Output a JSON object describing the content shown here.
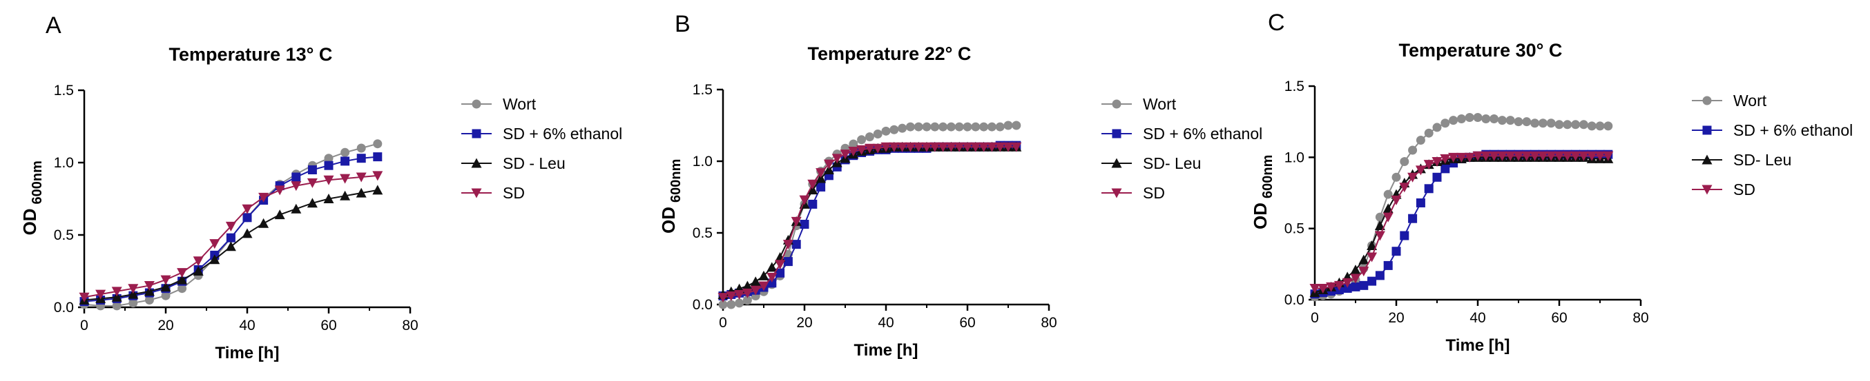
{
  "colors": {
    "wort": "#8c8c8c",
    "sd_ethanol": "#1a1aa6",
    "sd_leu": "#111111",
    "sd": "#9b1d4e",
    "axis": "#000000"
  },
  "chart_data": [
    {
      "type": "line",
      "panel_label": "A",
      "title": "Temperature 13° C",
      "xlabel": "Time [h]",
      "ylabel": "OD",
      "ylabel_sub": "600nm",
      "xlim": [
        0,
        80
      ],
      "ylim": [
        0,
        1.5
      ],
      "xticks": [
        0,
        20,
        40,
        60,
        80
      ],
      "yticks": [
        0.0,
        0.5,
        1.0,
        1.5
      ],
      "ytick_labels": [
        "0.0",
        "0.5",
        "1.0",
        "1.5"
      ],
      "grid": false,
      "legend_position": "right",
      "series": [
        {
          "key": "wort",
          "name": "Wort",
          "marker": "circle",
          "x": [
            0,
            4,
            8,
            12,
            16,
            20,
            24,
            28,
            32,
            36,
            40,
            44,
            48,
            52,
            56,
            60,
            64,
            68,
            72
          ],
          "y": [
            0.02,
            0.01,
            0.01,
            0.03,
            0.05,
            0.08,
            0.13,
            0.22,
            0.34,
            0.48,
            0.62,
            0.75,
            0.85,
            0.92,
            0.98,
            1.03,
            1.07,
            1.1,
            1.13
          ]
        },
        {
          "key": "sd_ethanol",
          "name": "SD + 6% ethanol",
          "marker": "square",
          "x": [
            0,
            4,
            8,
            12,
            16,
            20,
            24,
            28,
            32,
            36,
            40,
            44,
            48,
            52,
            56,
            60,
            64,
            68,
            72
          ],
          "y": [
            0.04,
            0.05,
            0.06,
            0.08,
            0.1,
            0.13,
            0.18,
            0.26,
            0.36,
            0.48,
            0.62,
            0.74,
            0.84,
            0.9,
            0.95,
            0.98,
            1.01,
            1.03,
            1.04
          ]
        },
        {
          "key": "sd_leu",
          "name": "SD - Leu",
          "marker": "triangle-up",
          "x": [
            0,
            4,
            8,
            12,
            16,
            20,
            24,
            28,
            32,
            36,
            40,
            44,
            48,
            52,
            56,
            60,
            64,
            68,
            72
          ],
          "y": [
            0.05,
            0.06,
            0.07,
            0.09,
            0.11,
            0.14,
            0.19,
            0.25,
            0.33,
            0.42,
            0.51,
            0.58,
            0.64,
            0.68,
            0.72,
            0.75,
            0.77,
            0.79,
            0.81
          ]
        },
        {
          "key": "sd",
          "name": "SD",
          "marker": "triangle-down",
          "x": [
            0,
            4,
            8,
            12,
            16,
            20,
            24,
            28,
            32,
            36,
            40,
            44,
            48,
            52,
            56,
            60,
            64,
            68,
            72
          ],
          "y": [
            0.07,
            0.09,
            0.11,
            0.13,
            0.15,
            0.19,
            0.24,
            0.32,
            0.44,
            0.56,
            0.68,
            0.76,
            0.81,
            0.84,
            0.86,
            0.88,
            0.89,
            0.9,
            0.91
          ]
        }
      ]
    },
    {
      "type": "line",
      "panel_label": "B",
      "title": "Temperature 22° C",
      "xlabel": "Time [h]",
      "ylabel": "OD",
      "ylabel_sub": "600nm",
      "xlim": [
        0,
        80
      ],
      "ylim": [
        0,
        1.5
      ],
      "xticks": [
        0,
        20,
        40,
        60,
        80
      ],
      "yticks": [
        0.0,
        0.5,
        1.0,
        1.5
      ],
      "ytick_labels": [
        "0.0",
        "0.5",
        "1.0",
        "1.5"
      ],
      "grid": false,
      "legend_position": "right",
      "series": [
        {
          "key": "wort",
          "name": "Wort",
          "marker": "circle",
          "x": [
            0,
            2,
            4,
            6,
            8,
            10,
            12,
            14,
            16,
            18,
            20,
            22,
            24,
            26,
            28,
            30,
            32,
            34,
            36,
            38,
            40,
            42,
            44,
            46,
            48,
            50,
            52,
            54,
            56,
            58,
            60,
            62,
            64,
            66,
            68,
            70,
            72
          ],
          "y": [
            0.0,
            0.0,
            0.01,
            0.03,
            0.06,
            0.09,
            0.14,
            0.2,
            0.35,
            0.55,
            0.7,
            0.84,
            0.93,
            1.0,
            1.05,
            1.09,
            1.12,
            1.15,
            1.17,
            1.19,
            1.21,
            1.22,
            1.23,
            1.24,
            1.24,
            1.24,
            1.24,
            1.24,
            1.24,
            1.24,
            1.24,
            1.24,
            1.24,
            1.24,
            1.24,
            1.25,
            1.25
          ]
        },
        {
          "key": "sd_ethanol",
          "name": "SD + 6% ethanol",
          "marker": "square",
          "x": [
            0,
            2,
            4,
            6,
            8,
            10,
            12,
            14,
            16,
            18,
            20,
            22,
            24,
            26,
            28,
            30,
            32,
            34,
            36,
            38,
            40,
            42,
            44,
            46,
            48,
            50,
            52,
            54,
            56,
            58,
            60,
            62,
            64,
            66,
            68,
            70,
            72
          ],
          "y": [
            0.06,
            0.07,
            0.08,
            0.09,
            0.1,
            0.12,
            0.15,
            0.22,
            0.3,
            0.42,
            0.56,
            0.7,
            0.82,
            0.9,
            0.96,
            1.01,
            1.04,
            1.06,
            1.07,
            1.08,
            1.08,
            1.09,
            1.09,
            1.09,
            1.09,
            1.09,
            1.1,
            1.1,
            1.1,
            1.1,
            1.1,
            1.1,
            1.1,
            1.1,
            1.11,
            1.11,
            1.11
          ]
        },
        {
          "key": "sd_leu",
          "name": "SD- Leu",
          "marker": "triangle-up",
          "x": [
            0,
            2,
            4,
            6,
            8,
            10,
            12,
            14,
            16,
            18,
            20,
            22,
            24,
            26,
            28,
            30,
            32,
            34,
            36,
            38,
            40,
            42,
            44,
            46,
            48,
            50,
            52,
            54,
            56,
            58,
            60,
            62,
            64,
            66,
            68,
            70,
            72
          ],
          "y": [
            0.07,
            0.09,
            0.11,
            0.13,
            0.16,
            0.2,
            0.26,
            0.33,
            0.45,
            0.58,
            0.7,
            0.8,
            0.88,
            0.94,
            0.99,
            1.02,
            1.05,
            1.07,
            1.08,
            1.09,
            1.09,
            1.1,
            1.1,
            1.1,
            1.1,
            1.1,
            1.1,
            1.1,
            1.1,
            1.1,
            1.1,
            1.1,
            1.1,
            1.1,
            1.1,
            1.1,
            1.1
          ]
        },
        {
          "key": "sd",
          "name": "SD",
          "marker": "triangle-down",
          "x": [
            0,
            2,
            4,
            6,
            8,
            10,
            12,
            14,
            16,
            18,
            20,
            22,
            24,
            26,
            28,
            30,
            32,
            34,
            36,
            38,
            40,
            42,
            44,
            46,
            48,
            50,
            52,
            54,
            56,
            58,
            60,
            62,
            64,
            66,
            68,
            70,
            72
          ],
          "y": [
            0.05,
            0.06,
            0.07,
            0.08,
            0.1,
            0.13,
            0.19,
            0.28,
            0.42,
            0.58,
            0.73,
            0.84,
            0.92,
            0.98,
            1.02,
            1.05,
            1.07,
            1.08,
            1.09,
            1.09,
            1.1,
            1.1,
            1.1,
            1.1,
            1.1,
            1.1,
            1.1,
            1.1,
            1.1,
            1.1,
            1.1,
            1.1,
            1.1,
            1.1,
            1.1,
            1.1,
            1.1
          ]
        }
      ]
    },
    {
      "type": "line",
      "panel_label": "C",
      "title": "Temperature 30° C",
      "xlabel": "Time [h]",
      "ylabel": "OD",
      "ylabel_sub": "600nm",
      "xlim": [
        0,
        80
      ],
      "ylim": [
        0,
        1.5
      ],
      "xticks": [
        0,
        20,
        40,
        60,
        80
      ],
      "yticks": [
        0.0,
        0.5,
        1.0,
        1.5
      ],
      "ytick_labels": [
        "0.0",
        "0.5",
        "1.0",
        "1.5"
      ],
      "grid": false,
      "legend_position": "right",
      "series": [
        {
          "key": "wort",
          "name": "Wort",
          "marker": "circle",
          "x": [
            0,
            2,
            4,
            6,
            8,
            10,
            12,
            14,
            16,
            18,
            20,
            22,
            24,
            26,
            28,
            30,
            32,
            34,
            36,
            38,
            40,
            42,
            44,
            46,
            48,
            50,
            52,
            54,
            56,
            58,
            60,
            62,
            64,
            66,
            68,
            70,
            72
          ],
          "y": [
            0.02,
            0.03,
            0.04,
            0.06,
            0.09,
            0.14,
            0.22,
            0.38,
            0.58,
            0.74,
            0.86,
            0.97,
            1.05,
            1.12,
            1.17,
            1.21,
            1.24,
            1.26,
            1.27,
            1.28,
            1.28,
            1.27,
            1.27,
            1.26,
            1.26,
            1.25,
            1.25,
            1.24,
            1.24,
            1.24,
            1.23,
            1.23,
            1.23,
            1.23,
            1.22,
            1.22,
            1.22
          ]
        },
        {
          "key": "sd_ethanol",
          "name": "SD + 6% ethanol",
          "marker": "square",
          "x": [
            0,
            2,
            4,
            6,
            8,
            10,
            12,
            14,
            16,
            18,
            20,
            22,
            24,
            26,
            28,
            30,
            32,
            34,
            36,
            38,
            40,
            42,
            44,
            46,
            48,
            50,
            52,
            54,
            56,
            58,
            60,
            62,
            64,
            66,
            68,
            70,
            72
          ],
          "y": [
            0.04,
            0.05,
            0.06,
            0.07,
            0.08,
            0.09,
            0.1,
            0.13,
            0.17,
            0.24,
            0.34,
            0.45,
            0.57,
            0.68,
            0.78,
            0.86,
            0.92,
            0.96,
            0.99,
            1.0,
            1.01,
            1.02,
            1.02,
            1.02,
            1.02,
            1.02,
            1.02,
            1.02,
            1.02,
            1.02,
            1.02,
            1.02,
            1.02,
            1.02,
            1.02,
            1.02,
            1.02
          ]
        },
        {
          "key": "sd_leu",
          "name": "SD- Leu",
          "marker": "triangle-up",
          "x": [
            0,
            2,
            4,
            6,
            8,
            10,
            12,
            14,
            16,
            18,
            20,
            22,
            24,
            26,
            28,
            30,
            32,
            34,
            36,
            38,
            40,
            42,
            44,
            46,
            48,
            50,
            52,
            54,
            56,
            58,
            60,
            62,
            64,
            66,
            68,
            70,
            72
          ],
          "y": [
            0.05,
            0.07,
            0.09,
            0.12,
            0.16,
            0.21,
            0.28,
            0.38,
            0.52,
            0.64,
            0.74,
            0.82,
            0.88,
            0.92,
            0.95,
            0.97,
            0.98,
            0.99,
            0.99,
            1.0,
            1.0,
            1.0,
            1.0,
            1.0,
            1.0,
            1.0,
            1.0,
            1.0,
            1.0,
            1.0,
            1.0,
            1.0,
            1.0,
            1.0,
            0.99,
            0.99,
            0.99
          ]
        },
        {
          "key": "sd",
          "name": "SD",
          "marker": "triangle-down",
          "x": [
            0,
            2,
            4,
            6,
            8,
            10,
            12,
            14,
            16,
            18,
            20,
            22,
            24,
            26,
            28,
            30,
            32,
            34,
            36,
            38,
            40,
            42,
            44,
            46,
            48,
            50,
            52,
            54,
            56,
            58,
            60,
            62,
            64,
            66,
            68,
            70,
            72
          ],
          "y": [
            0.08,
            0.08,
            0.09,
            0.1,
            0.12,
            0.15,
            0.2,
            0.3,
            0.45,
            0.58,
            0.7,
            0.79,
            0.86,
            0.91,
            0.95,
            0.97,
            0.99,
            1.0,
            1.0,
            1.0,
            1.01,
            1.01,
            1.01,
            1.01,
            1.01,
            1.01,
            1.01,
            1.01,
            1.01,
            1.01,
            1.01,
            1.01,
            1.01,
            1.01,
            1.01,
            1.01,
            1.01
          ]
        }
      ]
    }
  ]
}
